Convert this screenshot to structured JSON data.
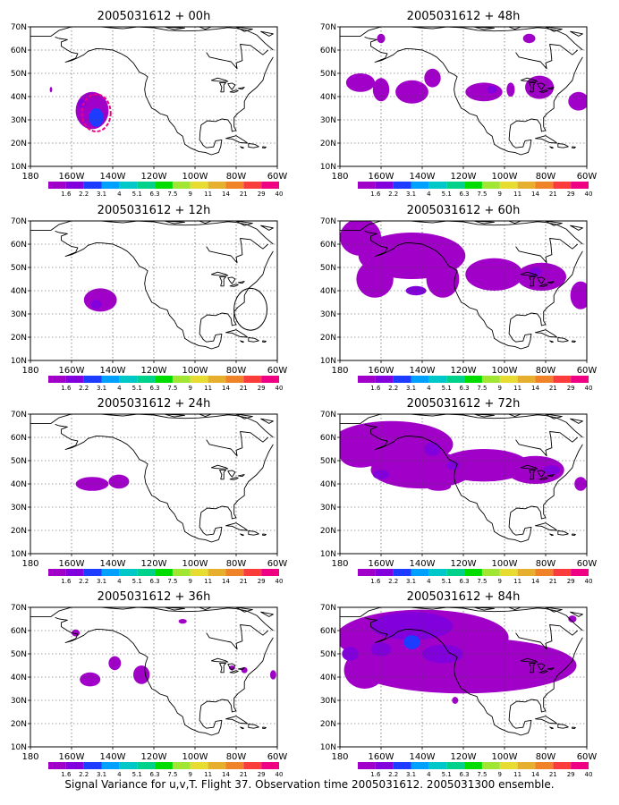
{
  "caption": "Signal Variance for u,v,T. Flight 37. Observation time 2005031612. 2005031300 ensemble.",
  "axes": {
    "lat_labels": [
      "70N",
      "60N",
      "50N",
      "40N",
      "30N",
      "20N",
      "10N"
    ],
    "lon_labels": [
      "180",
      "160W",
      "140W",
      "120W",
      "100W",
      "80W",
      "60W"
    ]
  },
  "colorbar": {
    "labels": [
      "1.6",
      "2.2",
      "3.1",
      "4",
      "5.1",
      "6.3",
      "7.5",
      "9",
      "11",
      "14",
      "21",
      "29",
      "40"
    ],
    "colors": [
      "#a000c8",
      "#8200dc",
      "#1e3cff",
      "#00a0ff",
      "#00c8c8",
      "#00d28c",
      "#00dc00",
      "#a0e632",
      "#e6dc32",
      "#e6af2d",
      "#f08228",
      "#fa3c3c",
      "#f00082"
    ]
  },
  "panels": [
    {
      "title": "2005031612 + 00h"
    },
    {
      "title": "2005031612 + 48h"
    },
    {
      "title": "2005031612 + 12h"
    },
    {
      "title": "2005031612 + 60h"
    },
    {
      "title": "2005031612 + 24h"
    },
    {
      "title": "2005031612 + 72h"
    },
    {
      "title": "2005031612 + 36h"
    },
    {
      "title": "2005031612 + 84h"
    }
  ]
}
